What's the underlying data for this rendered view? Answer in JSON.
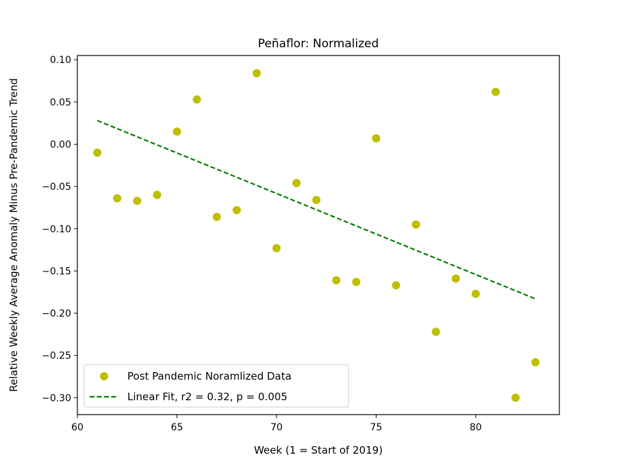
{
  "chart_data": {
    "type": "scatter",
    "title": "Peñaflor: Normalized",
    "xlabel": "Week (1 = Start of 2019)",
    "ylabel": "Relative Weekly Average Anomaly Minus Pre-Pandemic Trend",
    "xlim": [
      60,
      84.2
    ],
    "ylim": [
      -0.32,
      0.105
    ],
    "xticks": [
      60,
      65,
      70,
      75,
      80
    ],
    "yticks": [
      0.1,
      0.05,
      0.0,
      -0.05,
      -0.1,
      -0.15,
      -0.2,
      -0.25,
      -0.3
    ],
    "xtick_labels": [
      "60",
      "65",
      "70",
      "75",
      "80"
    ],
    "ytick_labels": [
      "0.10",
      "0.05",
      "0.00",
      "−0.05",
      "−0.10",
      "−0.15",
      "−0.20",
      "−0.25",
      "−0.30"
    ],
    "grid": false,
    "legend_position": "lower-left",
    "series": [
      {
        "name": "Post Pandemic Noramlized Data",
        "kind": "scatter",
        "color": "#bfbf00",
        "x": [
          61,
          62,
          63,
          64,
          65,
          66,
          67,
          68,
          69,
          70,
          71,
          72,
          73,
          74,
          75,
          76,
          77,
          78,
          79,
          80,
          81,
          82,
          83
        ],
        "y": [
          -0.01,
          -0.064,
          -0.067,
          -0.06,
          0.015,
          0.053,
          -0.086,
          -0.078,
          0.084,
          -0.123,
          -0.046,
          -0.066,
          -0.161,
          -0.163,
          0.007,
          -0.167,
          -0.095,
          -0.222,
          -0.159,
          -0.177,
          0.062,
          -0.3,
          -0.258
        ]
      },
      {
        "name": "Linear Fit, r2 = 0.32, p = 0.005",
        "kind": "line",
        "style": "dashed",
        "color": "#008000",
        "x": [
          61,
          83
        ],
        "y": [
          0.028,
          -0.183
        ]
      }
    ]
  }
}
